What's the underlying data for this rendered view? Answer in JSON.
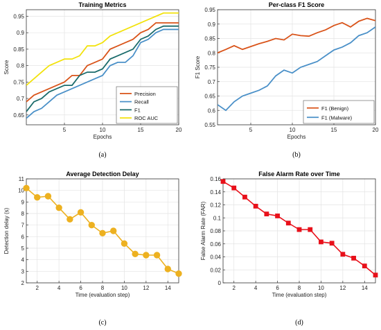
{
  "chart_data": [
    {
      "type": "line",
      "panel": "(a)",
      "title": "Training Metrics",
      "xlabel": "Epochs",
      "ylabel": "Score",
      "xlim": [
        0,
        20
      ],
      "ylim": [
        0.62,
        0.97
      ],
      "xticks": [
        5,
        10,
        15,
        20
      ],
      "yticks": [
        0.65,
        0.7,
        0.75,
        0.8,
        0.85,
        0.9,
        0.95
      ],
      "grid": true,
      "legend": "bottom-right",
      "x": [
        0,
        1,
        2,
        3,
        4,
        5,
        6,
        7,
        8,
        9,
        10,
        11,
        12,
        13,
        14,
        15,
        16,
        17,
        18,
        19,
        20
      ],
      "series": [
        {
          "name": "Precision",
          "color": "#D95319",
          "values": [
            0.69,
            0.71,
            0.72,
            0.73,
            0.74,
            0.75,
            0.77,
            0.77,
            0.8,
            0.81,
            0.82,
            0.85,
            0.86,
            0.87,
            0.88,
            0.9,
            0.91,
            0.93,
            0.93,
            0.93,
            0.93
          ]
        },
        {
          "name": "Recall",
          "color": "#4A90C8",
          "values": [
            0.64,
            0.66,
            0.67,
            0.69,
            0.71,
            0.72,
            0.73,
            0.74,
            0.75,
            0.76,
            0.77,
            0.8,
            0.81,
            0.81,
            0.83,
            0.87,
            0.88,
            0.9,
            0.91,
            0.91,
            0.91
          ]
        },
        {
          "name": "F1",
          "color": "#1A6B6B",
          "values": [
            0.66,
            0.69,
            0.7,
            0.72,
            0.73,
            0.74,
            0.74,
            0.77,
            0.78,
            0.78,
            0.79,
            0.82,
            0.83,
            0.84,
            0.85,
            0.88,
            0.89,
            0.91,
            0.92,
            0.92,
            0.92
          ]
        },
        {
          "name": "ROC AUC",
          "color": "#F2E20C",
          "values": [
            0.74,
            0.76,
            0.78,
            0.8,
            0.81,
            0.82,
            0.82,
            0.83,
            0.86,
            0.86,
            0.87,
            0.89,
            0.9,
            0.91,
            0.92,
            0.93,
            0.94,
            0.95,
            0.96,
            0.96,
            0.96
          ]
        }
      ]
    },
    {
      "type": "line",
      "panel": "(b)",
      "title": "Per-class F1 Score",
      "xlabel": "Epochs",
      "ylabel": "F1 Score",
      "xlim": [
        1,
        20
      ],
      "ylim": [
        0.55,
        0.95
      ],
      "xticks": [
        5,
        10,
        15,
        20
      ],
      "yticks": [
        0.55,
        0.6,
        0.65,
        0.7,
        0.75,
        0.8,
        0.85,
        0.9,
        0.95
      ],
      "grid": true,
      "legend": "bottom-right",
      "x": [
        1,
        2,
        3,
        4,
        5,
        6,
        7,
        8,
        9,
        10,
        11,
        12,
        13,
        14,
        15,
        16,
        17,
        18,
        19,
        20
      ],
      "series": [
        {
          "name": "F1 (Benign)",
          "color": "#D95319",
          "values": [
            0.8,
            0.812,
            0.825,
            0.812,
            0.822,
            0.832,
            0.84,
            0.85,
            0.845,
            0.865,
            0.86,
            0.858,
            0.87,
            0.88,
            0.895,
            0.905,
            0.89,
            0.91,
            0.92,
            0.912
          ]
        },
        {
          "name": "F1 (Malware)",
          "color": "#4A90C8",
          "values": [
            0.62,
            0.6,
            0.63,
            0.65,
            0.66,
            0.67,
            0.685,
            0.72,
            0.74,
            0.73,
            0.75,
            0.76,
            0.77,
            0.79,
            0.81,
            0.82,
            0.835,
            0.86,
            0.87,
            0.89
          ]
        }
      ]
    },
    {
      "type": "line",
      "panel": "(c)",
      "title": "Average Detection Delay",
      "xlabel": "Time (evaluation step)",
      "ylabel": "Detection delay (s)",
      "xlim": [
        1,
        15
      ],
      "ylim": [
        2,
        11
      ],
      "xticks": [
        2,
        4,
        6,
        8,
        10,
        12,
        14
      ],
      "yticks": [
        2,
        3,
        4,
        5,
        6,
        7,
        8,
        9,
        10,
        11
      ],
      "grid": true,
      "marker": "circle",
      "x": [
        1,
        2,
        3,
        4,
        5,
        6,
        7,
        8,
        9,
        10,
        11,
        12,
        13,
        14,
        15
      ],
      "series": [
        {
          "color": "#EDB120",
          "values": [
            10.2,
            9.4,
            9.5,
            8.5,
            7.5,
            8.1,
            7.0,
            6.3,
            6.5,
            5.4,
            4.5,
            4.4,
            4.4,
            3.2,
            2.8
          ]
        }
      ]
    },
    {
      "type": "line",
      "panel": "(d)",
      "title": "False Alarm Rate over Time",
      "xlabel": "Time (evaluation step)",
      "ylabel": "False Alarm Rate (FAR)",
      "xlim": [
        1,
        15
      ],
      "ylim": [
        0,
        0.16
      ],
      "xticks": [
        2,
        4,
        6,
        8,
        10,
        12,
        14
      ],
      "yticks": [
        0,
        0.02,
        0.04,
        0.06,
        0.08,
        0.1,
        0.12,
        0.14,
        0.16
      ],
      "grid": true,
      "marker": "square",
      "x": [
        1,
        2,
        3,
        4,
        5,
        6,
        7,
        8,
        9,
        10,
        11,
        12,
        13,
        14,
        15
      ],
      "series": [
        {
          "color": "#E8101A",
          "values": [
            0.156,
            0.146,
            0.132,
            0.118,
            0.106,
            0.103,
            0.092,
            0.082,
            0.082,
            0.063,
            0.061,
            0.044,
            0.038,
            0.026,
            0.012
          ]
        }
      ]
    }
  ]
}
